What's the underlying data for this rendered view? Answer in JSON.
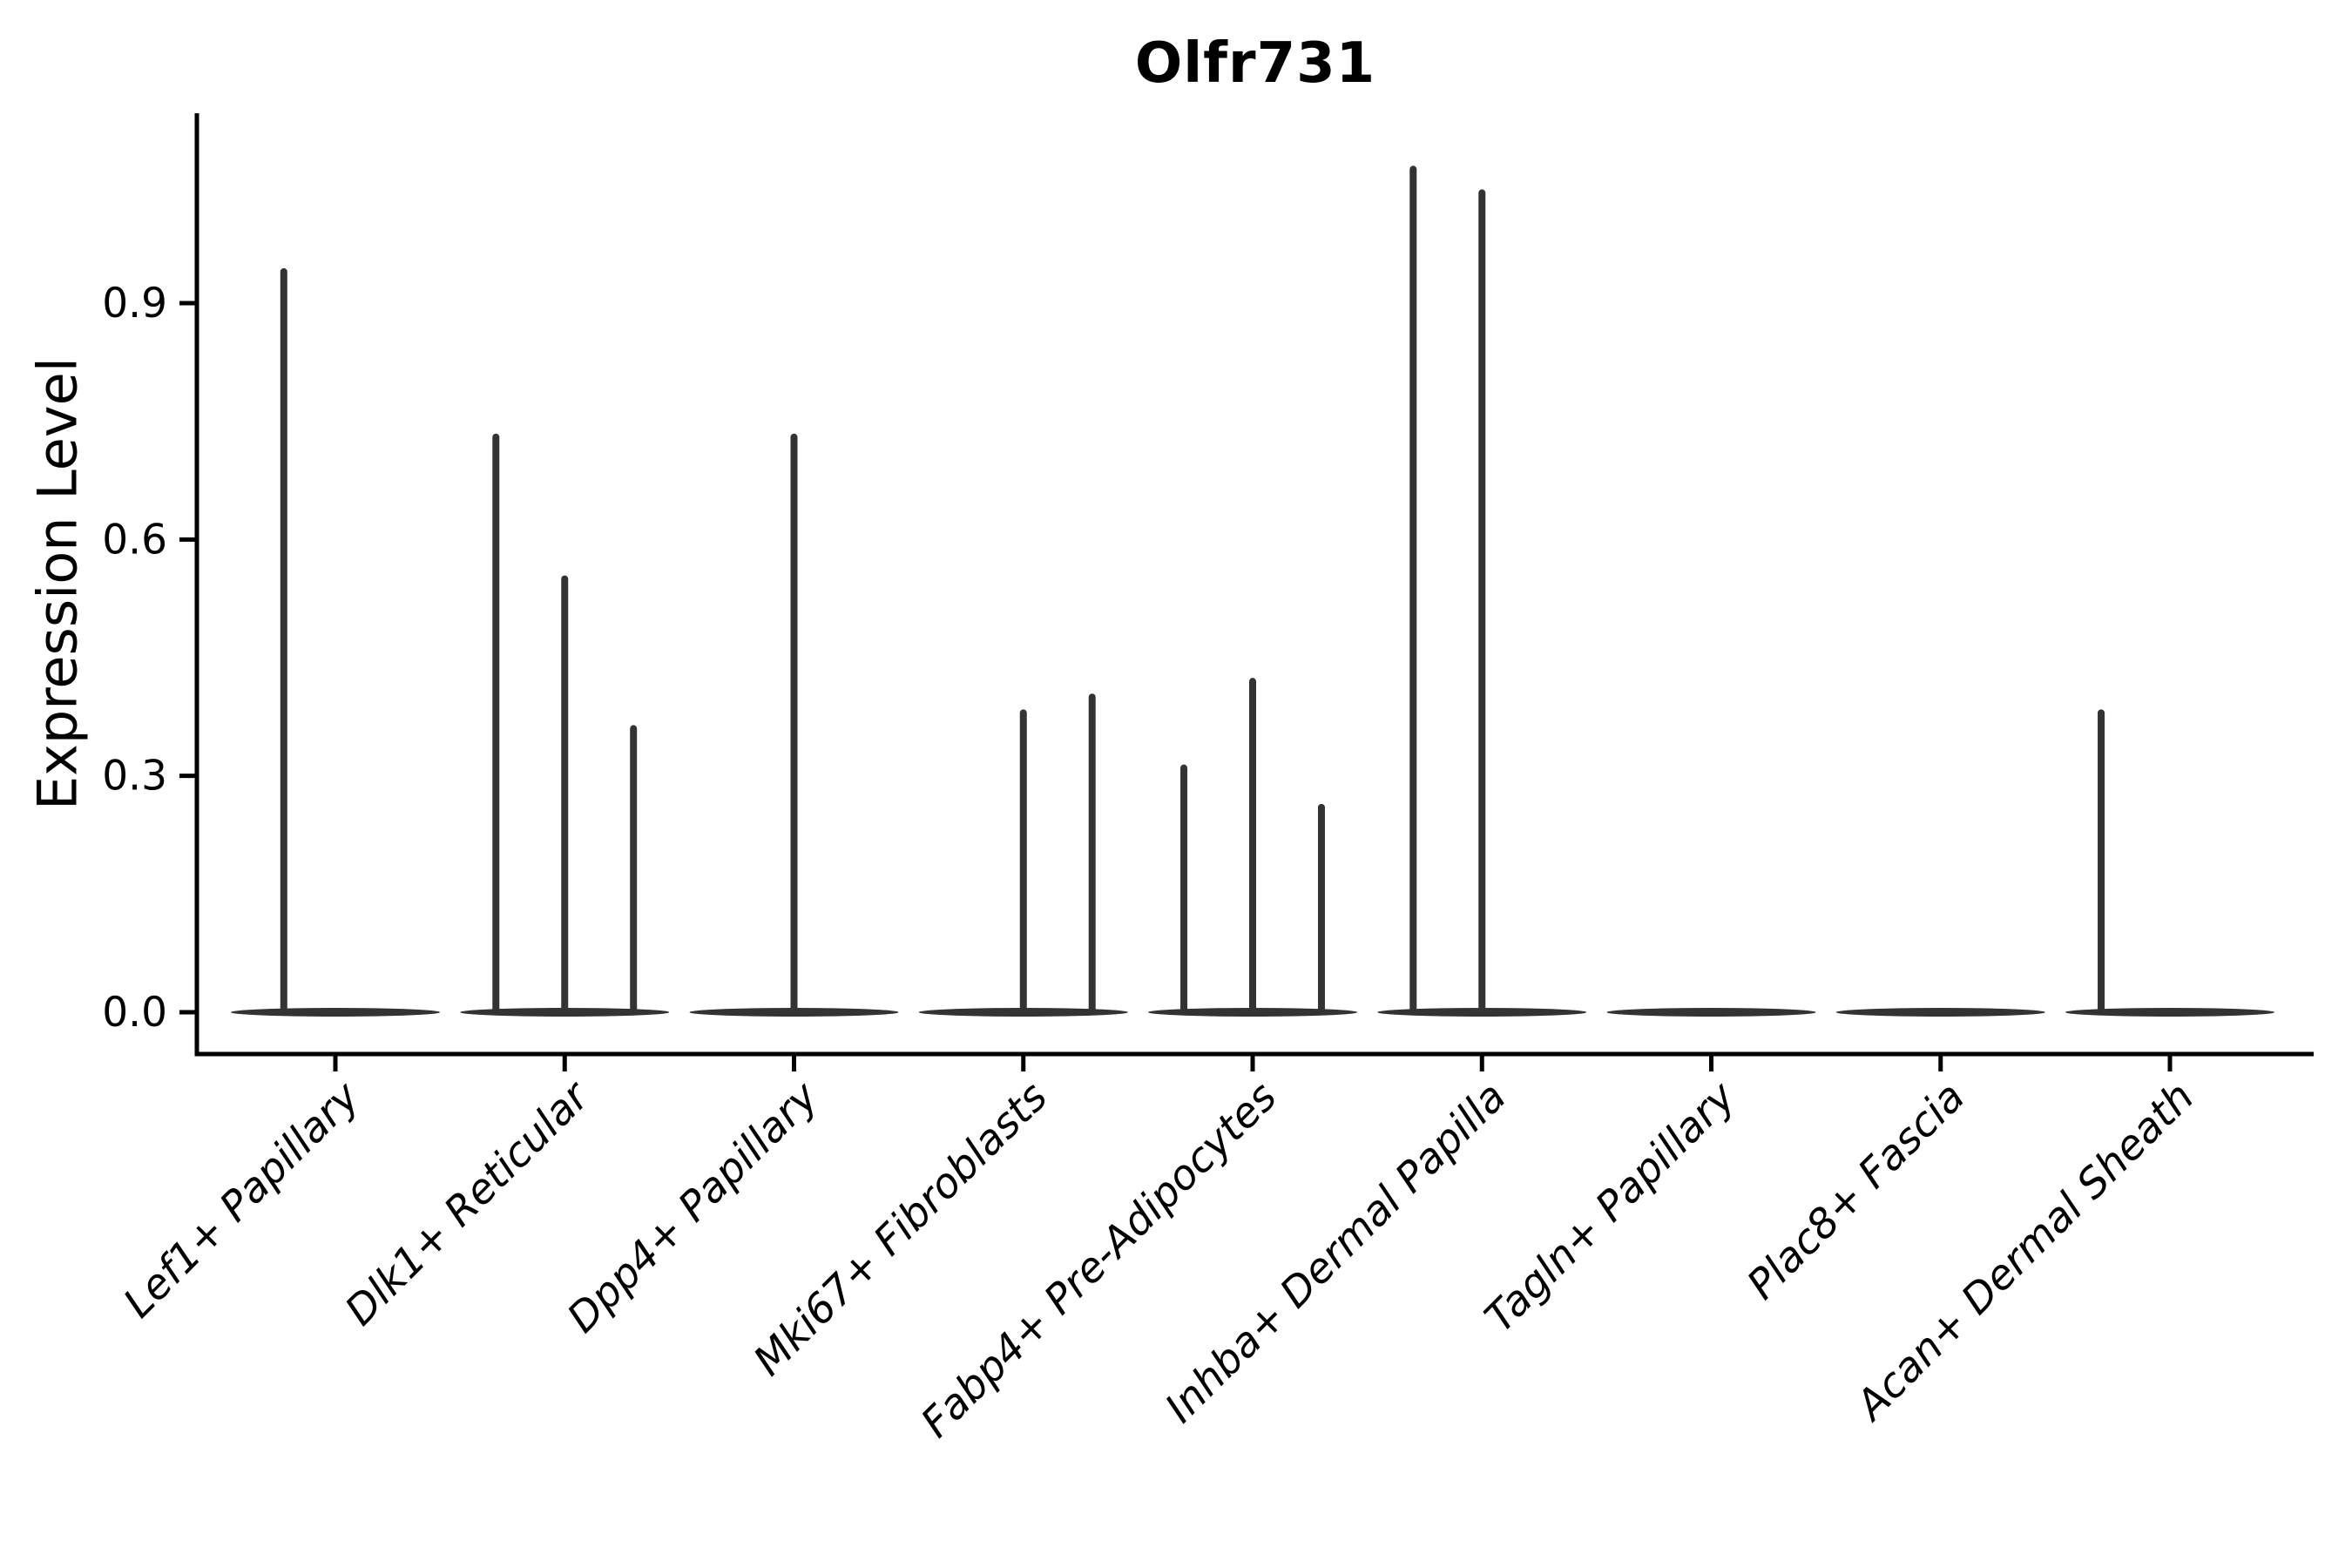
{
  "figure": {
    "background": "#ffffff",
    "axis_color": "#000000",
    "violin_color": "#333333"
  },
  "chart_data": {
    "type": "violin",
    "title": "Olfr731",
    "xlabel": "",
    "ylabel": "Expression Level",
    "grid": false,
    "legend": "none",
    "ylim": [
      -0.05,
      1.14
    ],
    "yticks": [
      "0.0",
      "0.3",
      "0.6",
      "0.9"
    ],
    "ytick_values": [
      0.0,
      0.3,
      0.6,
      0.9
    ],
    "categories": [
      "Lef1+ Papillary",
      "Dlk1+ Reticular",
      "Dpp4+ Papillary",
      "Mki67+ Fibroblasts",
      "Fabp4+ Pre-Adipocytes",
      "Inhba+ Dermal Papilla",
      "Tagln+ Papillary",
      "Plac8+ Fascia",
      "Acan+ Dermal Sheath"
    ],
    "series": [
      {
        "category": "Lef1+ Papillary",
        "spikes": [
          {
            "offset": -0.225,
            "value": 0.94
          }
        ]
      },
      {
        "category": "Dlk1+ Reticular",
        "spikes": [
          {
            "offset": -0.3,
            "value": 0.73
          },
          {
            "offset": 0.0,
            "value": 0.55
          },
          {
            "offset": 0.3,
            "value": 0.36
          }
        ]
      },
      {
        "category": "Dpp4+ Papillary",
        "spikes": [
          {
            "offset": 0.0,
            "value": 0.73
          }
        ]
      },
      {
        "category": "Mki67+ Fibroblasts",
        "spikes": [
          {
            "offset": 0.0,
            "value": 0.38
          },
          {
            "offset": 0.3,
            "value": 0.4
          }
        ]
      },
      {
        "category": "Fabp4+ Pre-Adipocytes",
        "spikes": [
          {
            "offset": -0.3,
            "value": 0.31
          },
          {
            "offset": 0.0,
            "value": 0.42
          },
          {
            "offset": 0.3,
            "value": 0.26
          }
        ]
      },
      {
        "category": "Inhba+ Dermal Papilla",
        "spikes": [
          {
            "offset": -0.3,
            "value": 1.07
          },
          {
            "offset": 0.0,
            "value": 1.04
          }
        ]
      },
      {
        "category": "Tagln+ Papillary",
        "spikes": []
      },
      {
        "category": "Plac8+ Fascia",
        "spikes": []
      },
      {
        "category": "Acan+ Dermal Sheath",
        "spikes": [
          {
            "offset": -0.3,
            "value": 0.38
          }
        ]
      }
    ]
  }
}
